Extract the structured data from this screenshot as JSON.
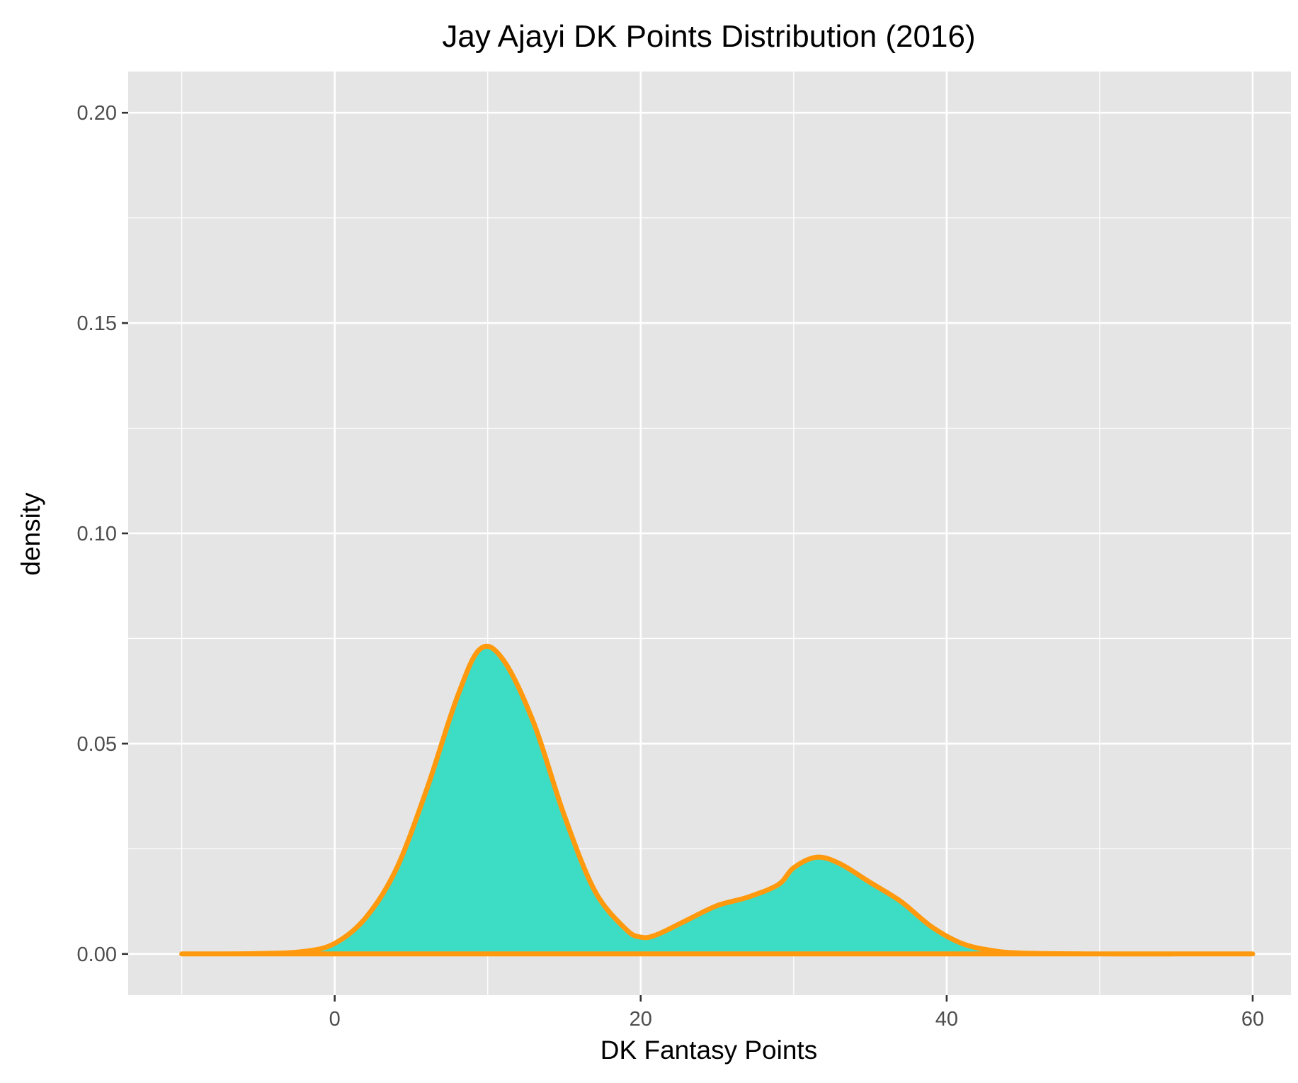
{
  "chart_data": {
    "type": "area",
    "title": "Jay Ajayi DK Points Distribution (2016)",
    "xlabel": "DK Fantasy Points",
    "ylabel": "density",
    "xlim": [
      -13.5,
      62.5
    ],
    "ylim": [
      -0.0098,
      0.2098
    ],
    "x_ticks": [
      0,
      20,
      40,
      60
    ],
    "x_tick_labels": [
      "0",
      "20",
      "40",
      "60"
    ],
    "y_ticks": [
      0.0,
      0.05,
      0.1,
      0.15,
      0.2
    ],
    "y_tick_labels": [
      "0.00",
      "0.05",
      "0.10",
      "0.15",
      "0.20"
    ],
    "x_minor": [
      -10,
      10,
      30,
      50
    ],
    "y_minor": [
      0.025,
      0.075,
      0.125,
      0.175
    ],
    "grid": true,
    "colors": {
      "panel_background": "#e5e5e5",
      "grid": "#ffffff",
      "fill": "#3ddcc4",
      "outline": "#ff9a0f",
      "tick_label": "#4d4d4d",
      "tick_mark": "#333333"
    },
    "series": [
      {
        "x": [
          -10,
          -5,
          -2,
          0,
          2,
          4,
          6,
          8,
          9.5,
          11,
          13,
          15,
          17,
          19,
          20,
          21,
          23,
          25,
          27,
          29,
          30,
          31.5,
          33,
          35,
          37,
          39,
          41,
          43,
          45,
          50,
          55,
          60
        ],
        "y": [
          0.0,
          0.0001,
          0.0006,
          0.0025,
          0.0085,
          0.02,
          0.039,
          0.061,
          0.0725,
          0.07,
          0.055,
          0.033,
          0.015,
          0.006,
          0.004,
          0.0045,
          0.008,
          0.0115,
          0.0135,
          0.0165,
          0.0205,
          0.023,
          0.0215,
          0.017,
          0.0125,
          0.0065,
          0.0025,
          0.0008,
          0.0002,
          0.0,
          0.0,
          0.0
        ]
      }
    ]
  }
}
